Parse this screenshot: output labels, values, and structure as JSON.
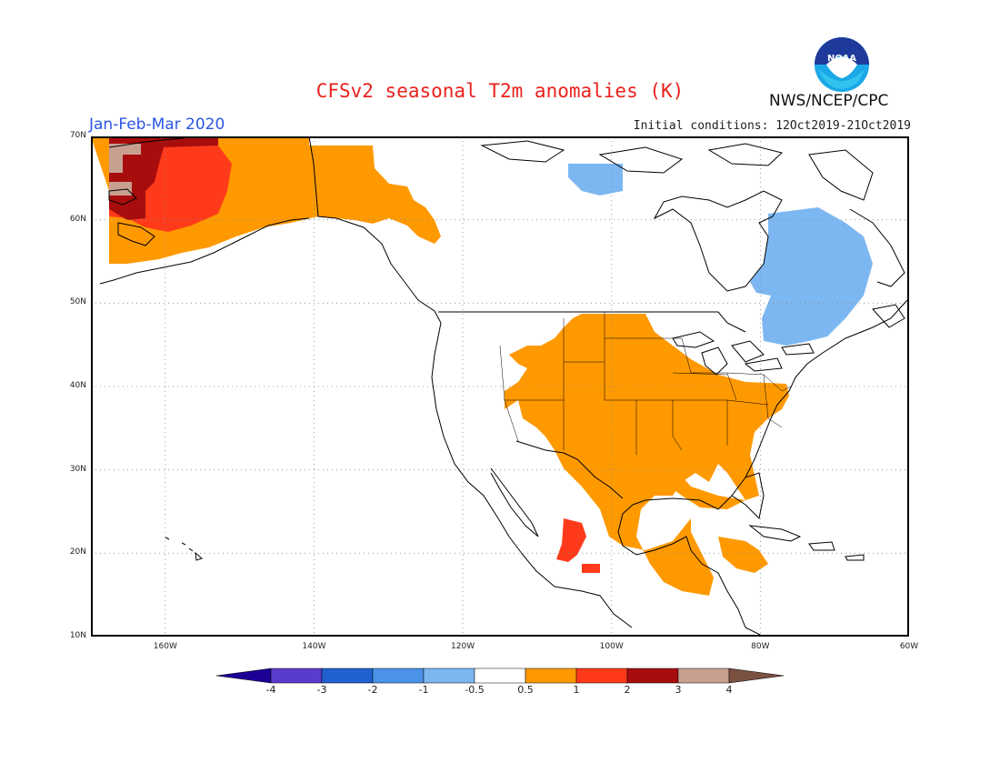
{
  "header": {
    "title": "CFSv2 seasonal T2m anomalies (K)",
    "period": "Jan-Feb-Mar 2020",
    "initial_conditions": "Initial conditions: 12Oct2019-21Oct2019",
    "agency": "NWS/NCEP/CPC",
    "logo_text": "NOAA"
  },
  "map": {
    "projection": "latitude-longitude",
    "lon_range": [
      -170,
      -60
    ],
    "lat_range": [
      10,
      70
    ],
    "lat_ticks": [
      "10N",
      "20N",
      "30N",
      "40N",
      "50N",
      "60N",
      "70N"
    ],
    "lon_ticks": [
      "160W",
      "140W",
      "120W",
      "100W",
      "80W",
      "60W"
    ],
    "grid": "dotted"
  },
  "legend": {
    "labels": [
      "-4",
      "-3",
      "-2",
      "-1",
      "-0.5",
      "0.5",
      "1",
      "2",
      "3",
      "4"
    ],
    "colors": [
      "#1c0096",
      "#5a3ccd",
      "#1f62cf",
      "#4b92e9",
      "#7db7f2",
      "#ffffff",
      "#ff9900",
      "#ff3a1a",
      "#a80d0d",
      "#c8a090",
      "#7a5040"
    ]
  },
  "colors": {
    "ocean": "#ffffff",
    "coast": "#000000",
    "warm_1": "#ff9900",
    "warm_2": "#ff3a1a",
    "warm_3": "#a80d0d",
    "warm_4": "#c8a090",
    "cool_1": "#7db7f2"
  }
}
